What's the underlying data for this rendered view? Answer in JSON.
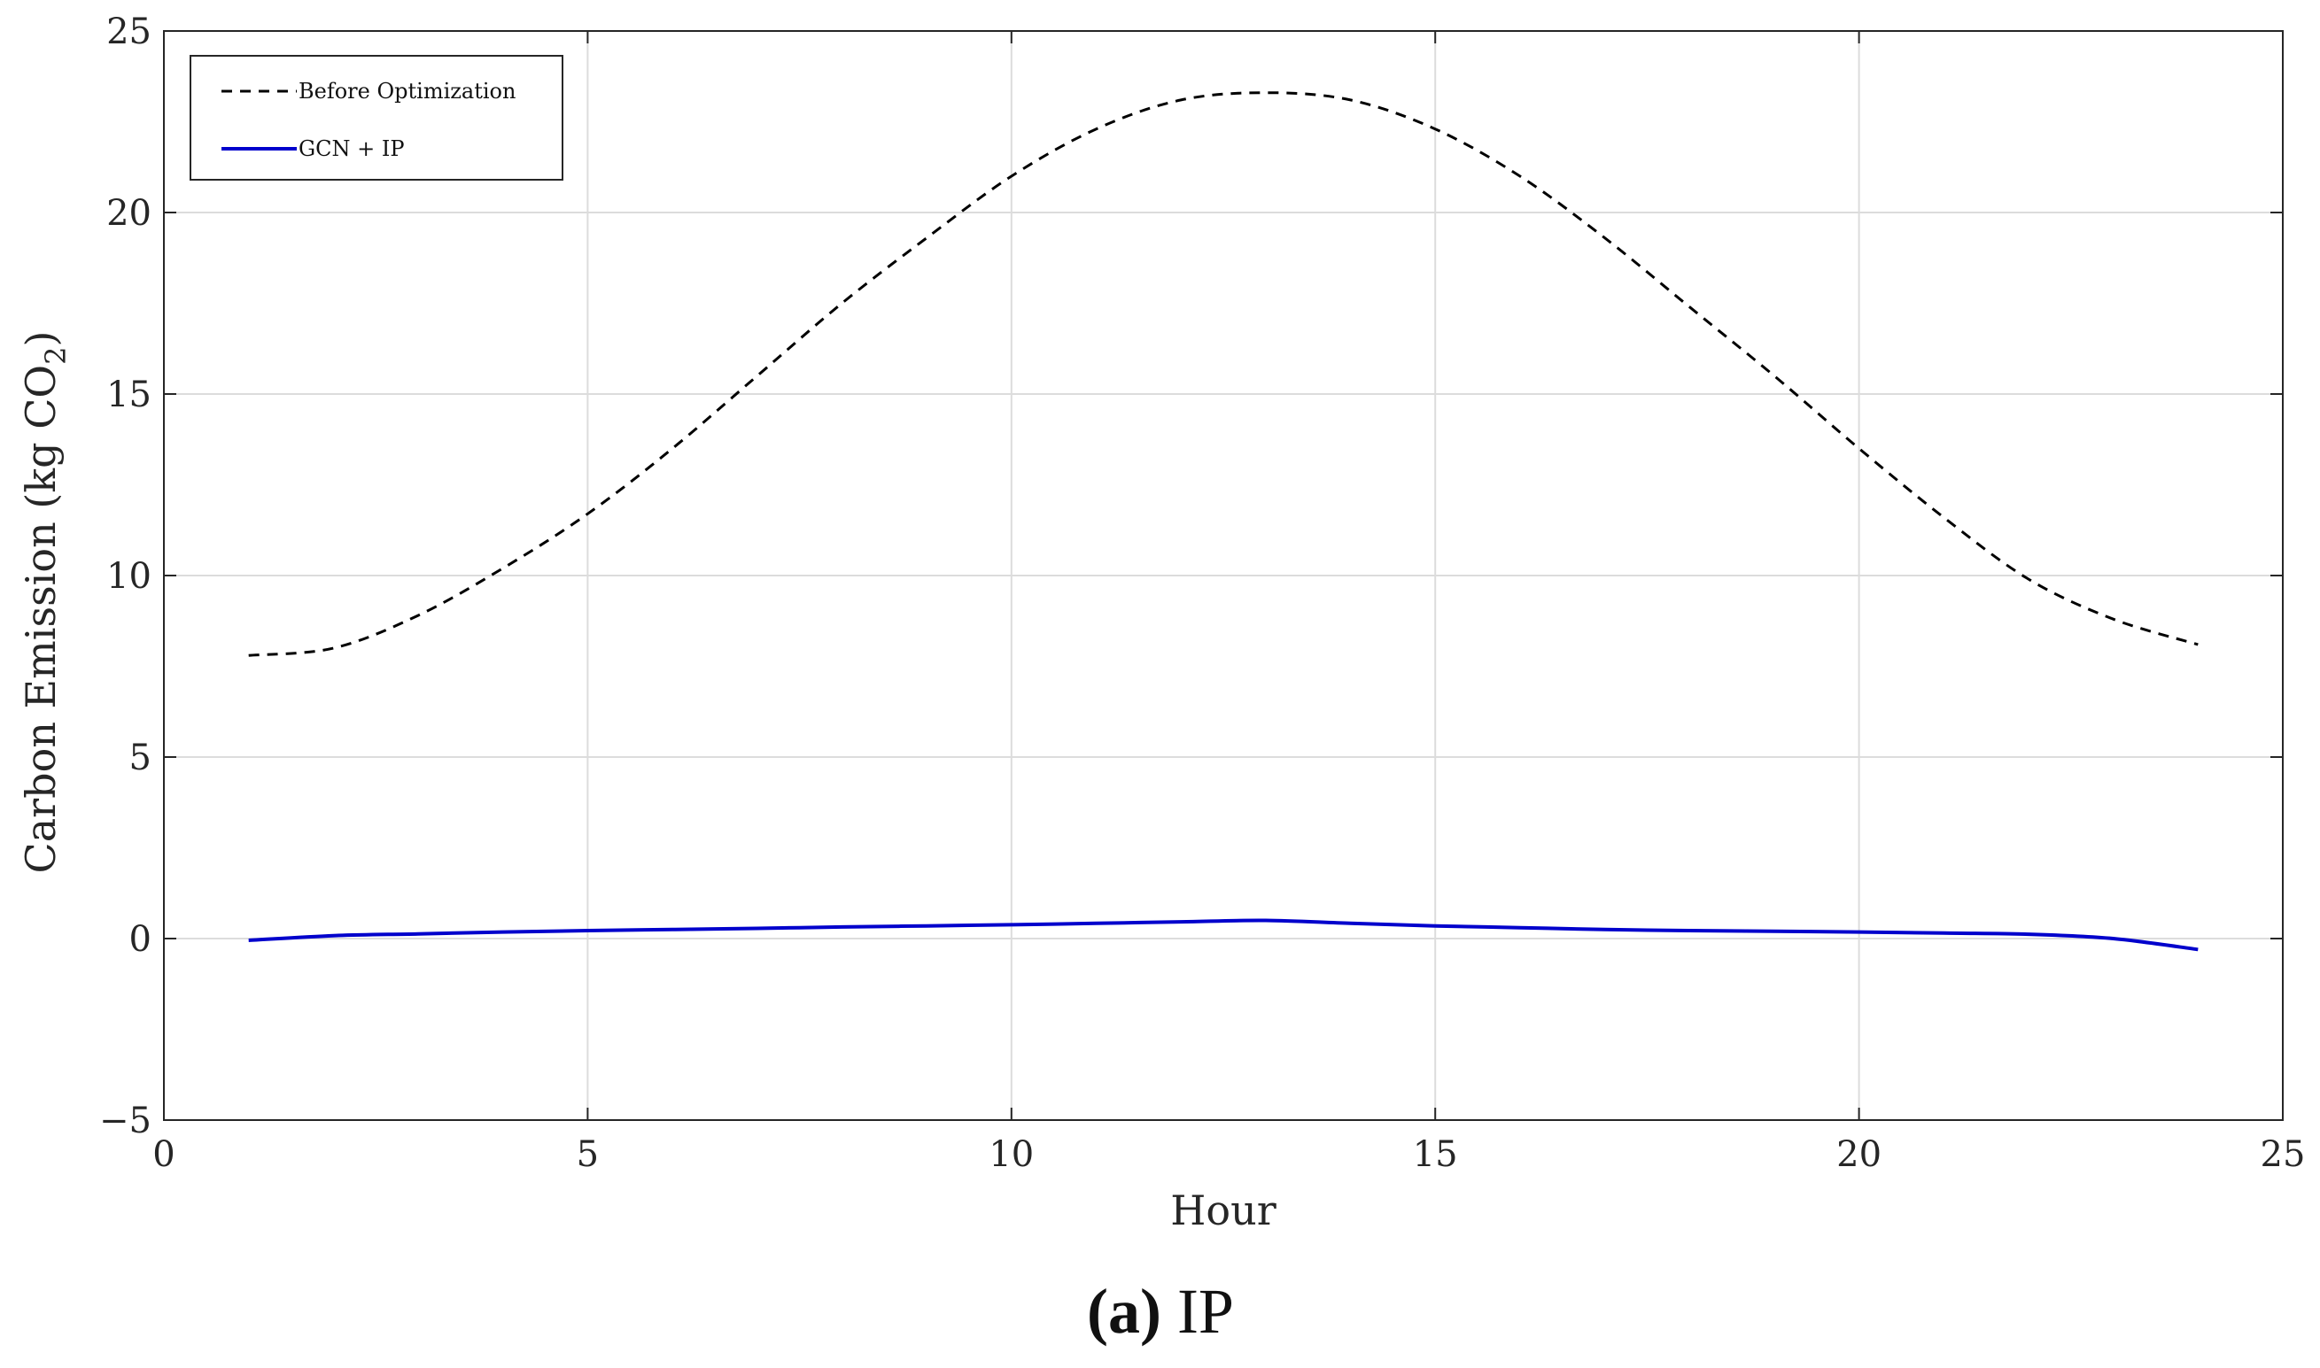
{
  "chart_data": {
    "type": "line",
    "title": "",
    "xlabel": "Hour",
    "ylabel": "Carbon Emission (kg CO",
    "ylabel_subscript": "2",
    "ylabel_close": ")",
    "xlim": [
      0,
      25
    ],
    "ylim": [
      -5,
      25
    ],
    "xticks": [
      0,
      5,
      10,
      15,
      20,
      25
    ],
    "yticks": [
      -5,
      0,
      5,
      10,
      15,
      20,
      25
    ],
    "grid": true,
    "legend_position": "top-left",
    "series": [
      {
        "name": "Before Optimization",
        "style": "dashed",
        "color": "#000000",
        "x": [
          1,
          2,
          3,
          4,
          5,
          6,
          7,
          8,
          9,
          10,
          11,
          12,
          13,
          14,
          15,
          16,
          17,
          18,
          19,
          20,
          21,
          22,
          23,
          24
        ],
        "values": [
          7.8,
          8.0,
          8.9,
          10.2,
          11.7,
          13.5,
          15.5,
          17.5,
          19.3,
          21.0,
          22.3,
          23.1,
          23.3,
          23.1,
          22.3,
          21.0,
          19.3,
          17.4,
          15.5,
          13.5,
          11.6,
          9.9,
          8.8,
          8.1
        ]
      },
      {
        "name": "GCN + IP",
        "style": "solid",
        "color": "#0000cc",
        "x": [
          1,
          2,
          3,
          4,
          5,
          6,
          7,
          8,
          9,
          10,
          11,
          12,
          13,
          14,
          15,
          16,
          17,
          18,
          19,
          20,
          21,
          22,
          23,
          24
        ],
        "values": [
          -0.05,
          0.08,
          0.13,
          0.18,
          0.22,
          0.25,
          0.28,
          0.32,
          0.35,
          0.38,
          0.42,
          0.46,
          0.5,
          0.42,
          0.35,
          0.3,
          0.25,
          0.22,
          0.2,
          0.18,
          0.15,
          0.12,
          0.0,
          -0.3
        ]
      }
    ]
  },
  "caption": {
    "label": "(a)",
    "text": "IP"
  }
}
